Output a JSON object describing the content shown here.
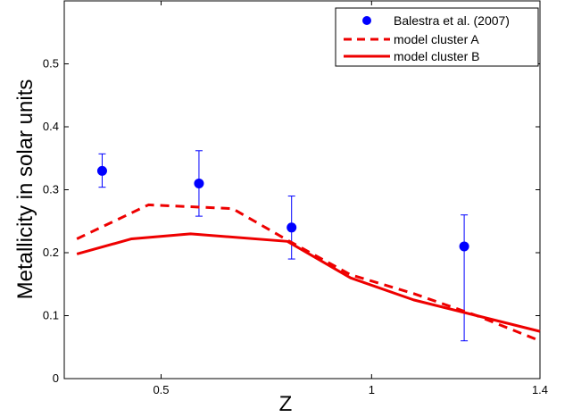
{
  "chart_data": {
    "type": "line",
    "title": "",
    "xlabel": "Z",
    "ylabel": "Metallicity in solar units",
    "xlim": [
      0.27,
      1.4
    ],
    "ylim": [
      0,
      0.6
    ],
    "xticks": [
      0.5,
      1,
      1.4
    ],
    "xtick_labels": [
      "0.5",
      "1",
      "1.4"
    ],
    "yticks": [
      0,
      0.1,
      0.2,
      0.3,
      0.4,
      0.5
    ],
    "ytick_labels": [
      "0",
      "0.1",
      "0.2",
      "0.3",
      "0.4",
      "0.5"
    ],
    "grid": false,
    "legend_position": "top-right",
    "series": [
      {
        "name": "Balestra et al. (2007)",
        "kind": "errorbar",
        "color": "#0000ff",
        "x": [
          0.36,
          0.59,
          0.81,
          1.22
        ],
        "y": [
          0.33,
          0.31,
          0.24,
          0.21
        ],
        "yerr_low": [
          0.304,
          0.258,
          0.19,
          0.06
        ],
        "yerr_high": [
          0.357,
          0.362,
          0.29,
          0.26
        ]
      },
      {
        "name": "model cluster A",
        "kind": "line",
        "style": "dashed",
        "color": "#ee0000",
        "x": [
          0.3,
          0.47,
          0.67,
          0.8,
          0.95,
          1.1,
          1.25,
          1.4
        ],
        "y": [
          0.222,
          0.276,
          0.27,
          0.22,
          0.165,
          0.135,
          0.1,
          0.06
        ]
      },
      {
        "name": "model cluster B",
        "kind": "line",
        "style": "solid",
        "color": "#ee0000",
        "x": [
          0.3,
          0.43,
          0.57,
          0.8,
          0.95,
          1.1,
          1.25,
          1.4
        ],
        "y": [
          0.198,
          0.222,
          0.23,
          0.218,
          0.16,
          0.125,
          0.1,
          0.075
        ]
      }
    ]
  }
}
